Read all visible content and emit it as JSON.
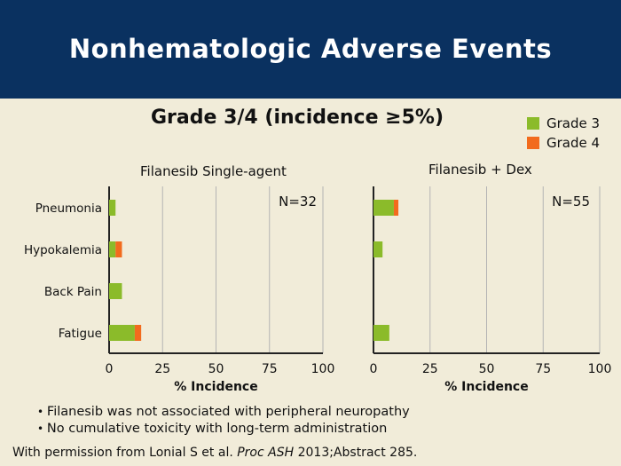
{
  "header": {
    "title": "Nonhematologic Adverse Events"
  },
  "subtitle": "Grade 3/4 (incidence ≥5%)",
  "legend": [
    {
      "label": "Grade 3",
      "color": "#8bbb2a"
    },
    {
      "label": "Grade 4",
      "color": "#f26b1d"
    }
  ],
  "chart_data": [
    {
      "type": "bar",
      "orientation": "horizontal",
      "stacked": true,
      "title": "Filanesib Single-agent",
      "annotation": "N=32",
      "categories": [
        "Pneumonia",
        "Hypokalemia",
        "Back Pain",
        "Fatigue"
      ],
      "series": [
        {
          "name": "Grade 3",
          "values": [
            3,
            3,
            6,
            12
          ]
        },
        {
          "name": "Grade 4",
          "values": [
            0,
            3,
            0,
            3
          ]
        }
      ],
      "xlabel": "% Incidence",
      "xlim": [
        0,
        100
      ],
      "xticks": [
        0,
        25,
        50,
        75,
        100
      ],
      "grid": true
    },
    {
      "type": "bar",
      "orientation": "horizontal",
      "stacked": true,
      "title": "Filanesib + Dex",
      "annotation": "N=55",
      "categories": [
        "Pneumonia",
        "Hypokalemia",
        "Back Pain",
        "Fatigue"
      ],
      "series": [
        {
          "name": "Grade 3",
          "values": [
            9,
            4,
            0,
            7
          ]
        },
        {
          "name": "Grade 4",
          "values": [
            2,
            0,
            0,
            0
          ]
        }
      ],
      "xlabel": "% Incidence",
      "xlim": [
        0,
        100
      ],
      "xticks": [
        0,
        25,
        50,
        75,
        100
      ],
      "grid": true
    }
  ],
  "bullets": [
    "Filanesib was not associated with peripheral neuropathy",
    "No cumulative toxicity with long-term administration"
  ],
  "credit": {
    "prefix": "With permission from Lonial S et al. ",
    "journal": "Proc ASH",
    "suffix": " 2013;Abstract 285."
  }
}
